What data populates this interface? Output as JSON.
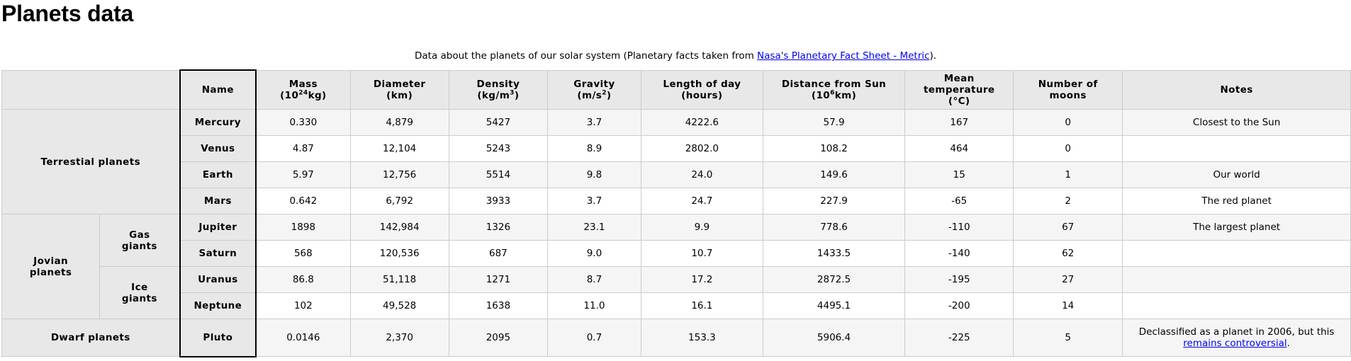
{
  "title": "Planets data",
  "caption": {
    "text": "Data about the planets of our solar system (Planetary facts taken from ",
    "link": "Nasa's Planetary Fact Sheet - Metric",
    "end": ")."
  },
  "headers": {
    "name": "Name",
    "mass": {
      "line1": "Mass",
      "pre": "(10",
      "sup": "24",
      "post": "kg)"
    },
    "diameter": {
      "line1": "Diameter",
      "line2": "(km)"
    },
    "density": {
      "line1": "Density",
      "pre": "(kg/m",
      "sup": "3",
      "post": ")"
    },
    "gravity": {
      "line1": "Gravity",
      "pre": "(m/s",
      "sup": "2",
      "post": ")"
    },
    "day": {
      "line1": "Length of day",
      "line2": "(hours)"
    },
    "distance": {
      "line1": "Distance from Sun",
      "pre": "(10",
      "sup": "6",
      "post": "km)"
    },
    "temp": {
      "line1": "Mean temperature",
      "line2": "(°C)"
    },
    "moons": {
      "line1": "Number of",
      "line2": "moons"
    },
    "notes": "Notes"
  },
  "groups": {
    "terrestrial": "Terrestial planets",
    "jovian_1": "Jovian",
    "jovian_2": "planets",
    "gas_1": "Gas",
    "gas_2": "giants",
    "ice_1": "Ice",
    "ice_2": "giants",
    "dwarf": "Dwarf planets"
  },
  "planets": [
    {
      "name": "Mercury",
      "mass": "0.330",
      "diameter": "4,879",
      "density": "5427",
      "gravity": "3.7",
      "day": "4222.6",
      "distance": "57.9",
      "temp": "167",
      "moons": "0",
      "notes": "Closest to the Sun"
    },
    {
      "name": "Venus",
      "mass": "4.87",
      "diameter": "12,104",
      "density": "5243",
      "gravity": "8.9",
      "day": "2802.0",
      "distance": "108.2",
      "temp": "464",
      "moons": "0",
      "notes": ""
    },
    {
      "name": "Earth",
      "mass": "5.97",
      "diameter": "12,756",
      "density": "5514",
      "gravity": "9.8",
      "day": "24.0",
      "distance": "149.6",
      "temp": "15",
      "moons": "1",
      "notes": "Our world"
    },
    {
      "name": "Mars",
      "mass": "0.642",
      "diameter": "6,792",
      "density": "3933",
      "gravity": "3.7",
      "day": "24.7",
      "distance": "227.9",
      "temp": "-65",
      "moons": "2",
      "notes": "The red planet"
    },
    {
      "name": "Jupiter",
      "mass": "1898",
      "diameter": "142,984",
      "density": "1326",
      "gravity": "23.1",
      "day": "9.9",
      "distance": "778.6",
      "temp": "-110",
      "moons": "67",
      "notes": "The largest planet"
    },
    {
      "name": "Saturn",
      "mass": "568",
      "diameter": "120,536",
      "density": "687",
      "gravity": "9.0",
      "day": "10.7",
      "distance": "1433.5",
      "temp": "-140",
      "moons": "62",
      "notes": ""
    },
    {
      "name": "Uranus",
      "mass": "86.8",
      "diameter": "51,118",
      "density": "1271",
      "gravity": "8.7",
      "day": "17.2",
      "distance": "2872.5",
      "temp": "-195",
      "moons": "27",
      "notes": ""
    },
    {
      "name": "Neptune",
      "mass": "102",
      "diameter": "49,528",
      "density": "1638",
      "gravity": "11.0",
      "day": "16.1",
      "distance": "4495.1",
      "temp": "-200",
      "moons": "14",
      "notes": ""
    },
    {
      "name": "Pluto",
      "mass": "0.0146",
      "diameter": "2,370",
      "density": "2095",
      "gravity": "0.7",
      "day": "153.3",
      "distance": "5906.4",
      "temp": "-225",
      "moons": "5",
      "notes_text": "Declassified as a planet in 2006, but this",
      "notes_link": "remains controversial",
      "notes_end": "."
    }
  ]
}
